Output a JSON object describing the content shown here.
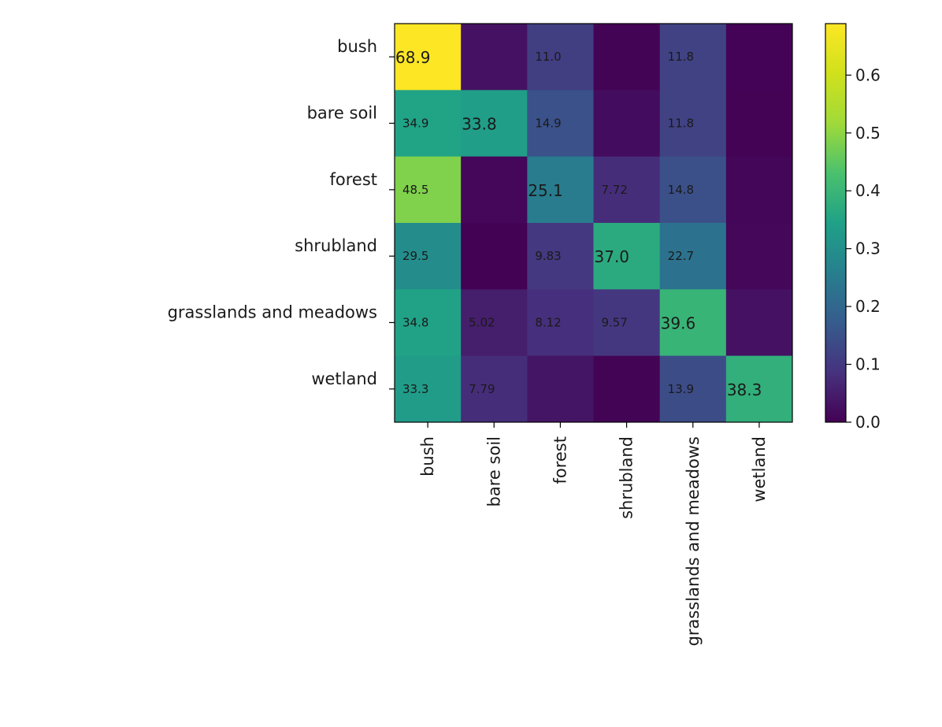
{
  "chart_data": {
    "type": "heatmap",
    "title": "",
    "xlabel": "",
    "ylabel": "",
    "row_labels": [
      "bush",
      "bare soil",
      "forest",
      "shrubland",
      "grasslands and meadows",
      "wetland"
    ],
    "col_labels": [
      "bush",
      "bare soil",
      "forest",
      "shrubland",
      "grasslands and meadows",
      "wetland"
    ],
    "values": [
      [
        0.689,
        0.03,
        0.11,
        0.005,
        0.118,
        0.004
      ],
      [
        0.349,
        0.338,
        0.149,
        0.02,
        0.118,
        0.003
      ],
      [
        0.485,
        0.01,
        0.251,
        0.0772,
        0.148,
        0.008
      ],
      [
        0.295,
        0.001,
        0.0983,
        0.37,
        0.227,
        0.01
      ],
      [
        0.348,
        0.0502,
        0.0812,
        0.0957,
        0.396,
        0.03
      ],
      [
        0.333,
        0.0779,
        0.035,
        0.005,
        0.139,
        0.383
      ]
    ],
    "cell_labels": [
      [
        "68.9",
        "",
        "11.0",
        "",
        "11.8",
        ""
      ],
      [
        "34.9",
        "33.8",
        "14.9",
        "",
        "11.8",
        ""
      ],
      [
        "48.5",
        "",
        "25.1",
        "7.72",
        "14.8",
        ""
      ],
      [
        "29.5",
        "",
        "9.83",
        "37.0",
        "22.7",
        ""
      ],
      [
        "34.8",
        "5.02",
        "8.12",
        "9.57",
        "39.6",
        ""
      ],
      [
        "33.3",
        "7.79",
        "",
        "",
        "13.9",
        "38.3"
      ]
    ],
    "colormap": "viridis",
    "vmin": 0.0,
    "vmax": 0.689,
    "colorbar": {
      "ticks": [
        0.0,
        0.1,
        0.2,
        0.3,
        0.4,
        0.5,
        0.6
      ],
      "tick_labels": [
        "0.0",
        "0.1",
        "0.2",
        "0.3",
        "0.4",
        "0.5",
        "0.6"
      ]
    },
    "colormap_stops": [
      {
        "v": 0.0,
        "color": "#440154"
      },
      {
        "v": 0.125,
        "color": "#46327e"
      },
      {
        "v": 0.25,
        "color": "#365c8d"
      },
      {
        "v": 0.375,
        "color": "#277f8e"
      },
      {
        "v": 0.5,
        "color": "#1fa187"
      },
      {
        "v": 0.625,
        "color": "#4ac16d"
      },
      {
        "v": 0.75,
        "color": "#a0da39"
      },
      {
        "v": 0.875,
        "color": "#d0e11c"
      },
      {
        "v": 1.0,
        "color": "#fde725"
      }
    ]
  }
}
